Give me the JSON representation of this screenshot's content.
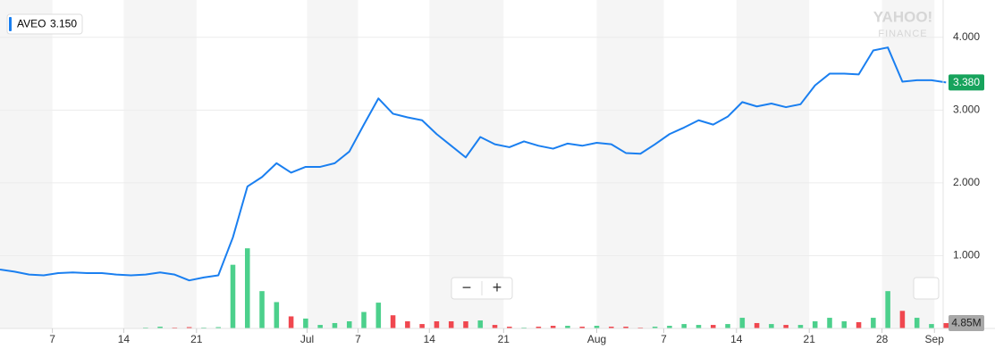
{
  "chart_data": {
    "type": "stock",
    "watermark": {
      "brand": "YAHOO!",
      "product": "FINANCE"
    },
    "legend_price": {
      "value": 3.15,
      "label": "3.150"
    },
    "controls": {
      "zoom_out": "−",
      "zoom_in": "+",
      "scroll": "»"
    },
    "x": [
      0,
      1,
      2,
      3,
      4,
      5,
      6,
      7,
      8,
      9,
      10,
      11,
      12,
      13,
      14,
      15,
      16,
      17,
      18,
      19,
      20,
      21,
      22,
      23,
      24,
      25,
      26,
      27,
      28,
      29,
      30,
      31,
      32,
      33,
      34,
      35,
      36,
      37,
      38,
      39,
      40,
      41,
      42,
      43,
      44,
      45,
      46,
      47,
      48,
      49,
      50,
      51,
      52,
      53,
      54,
      55,
      56,
      57,
      58,
      59,
      60,
      61,
      62,
      63,
      64,
      65
    ],
    "xlim": [
      0,
      64.8
    ],
    "xticks": [
      {
        "value": 3.6,
        "label": "7"
      },
      {
        "value": 8.5,
        "label": "14"
      },
      {
        "value": 13.5,
        "label": "21"
      },
      {
        "value": 21.1,
        "label": "Jul"
      },
      {
        "value": 24.6,
        "label": "7"
      },
      {
        "value": 29.5,
        "label": "14"
      },
      {
        "value": 34.6,
        "label": "21"
      },
      {
        "value": 41.0,
        "label": "Aug"
      },
      {
        "value": 45.6,
        "label": "7"
      },
      {
        "value": 50.6,
        "label": "14"
      },
      {
        "value": 55.6,
        "label": "21"
      },
      {
        "value": 60.6,
        "label": "28"
      },
      {
        "value": 64.2,
        "label": "Sep"
      }
    ],
    "ylim": [
      0,
      4.5
    ],
    "yticks": [
      {
        "value": 1,
        "label": "1.000"
      },
      {
        "value": 2,
        "label": "2.000"
      },
      {
        "value": 3,
        "label": "3.000"
      },
      {
        "value": 4,
        "label": "4.000"
      }
    ],
    "y2lim": [
      0,
      100
    ],
    "grid": true,
    "up_color": "#4cd08c",
    "down_color": "#f0474f",
    "series": [
      {
        "name": "AVEO",
        "color": "#1a7ff0",
        "values": [
          0.81,
          0.78,
          0.74,
          0.73,
          0.76,
          0.77,
          0.76,
          0.76,
          0.74,
          0.73,
          0.74,
          0.77,
          0.74,
          0.66,
          0.7,
          0.73,
          1.25,
          1.95,
          2.08,
          2.27,
          2.14,
          2.22,
          2.22,
          2.27,
          2.43,
          2.8,
          3.16,
          2.95,
          2.9,
          2.86,
          2.67,
          2.51,
          2.35,
          2.63,
          2.53,
          2.49,
          2.57,
          2.51,
          2.47,
          2.54,
          2.51,
          2.55,
          2.53,
          2.41,
          2.4,
          2.53,
          2.67,
          2.76,
          2.86,
          2.8,
          2.91,
          3.11,
          3.05,
          3.09,
          3.04,
          3.08,
          3.34,
          3.5,
          3.5,
          3.49,
          3.82,
          3.86,
          3.39,
          3.41,
          3.41,
          3.38
        ]
      },
      {
        "axis": "y2",
        "values": [
          0.4,
          0.4,
          0.4,
          0.4,
          0.4,
          0.4,
          0.4,
          0.4,
          0.4,
          0.4,
          0.8,
          1.6,
          0.8,
          1.2,
          0.8,
          1.2,
          58,
          73,
          34,
          24,
          11,
          9,
          3.2,
          4.9,
          6.5,
          15,
          23.5,
          12,
          6.5,
          4,
          6.5,
          6.5,
          6.5,
          7.3,
          3.2,
          1.6,
          0.8,
          1.6,
          2.4,
          2.4,
          1.6,
          2.4,
          1.6,
          1.6,
          0.8,
          1.6,
          2.4,
          4,
          3.2,
          3.2,
          4,
          9.7,
          4.9,
          4,
          3.2,
          3.2,
          6.5,
          9.7,
          6.5,
          5.7,
          9.7,
          34,
          16,
          9.7,
          4,
          4.85
        ]
      }
    ],
    "current_price": {
      "value": 3.38,
      "label": "3.380"
    },
    "current_volume": {
      "value": 4.85,
      "label": "4.85M"
    }
  }
}
